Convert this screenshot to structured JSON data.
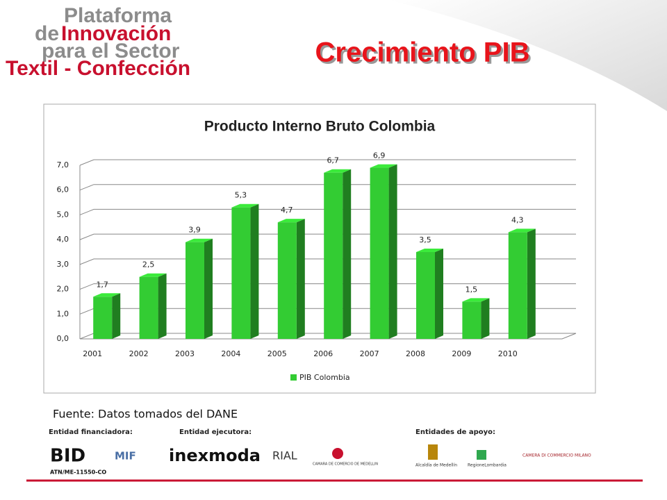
{
  "logo": {
    "line1": "Plataforma",
    "line2a": "de",
    "line2b": "Innovación",
    "line3": "para el Sector",
    "line4": "Textil - Confección"
  },
  "slide_title": "Crecimiento PIB",
  "source": "Fuente: Datos tomados del DANE",
  "footer": {
    "financiadora": "Entidad financiadora:",
    "ejecutora": "Entidad ejecutora:",
    "apoyo": "Entidades de apoyo:",
    "bid": "BID",
    "bid_code": "ATN/ME-11550-CO",
    "mif": "MIF",
    "inexmoda": "inexmoda",
    "rial": "RIAL",
    "camara": "CAMARA DE COMERCIO DE MEDELLIN",
    "alcaldia": "Alcaldía de Medellín",
    "lombardia": "RegioneLombardia",
    "milano": "CAMERA DI COMMERCIO MILANO"
  },
  "chart_data": {
    "type": "bar3d",
    "title": "Producto Interno Bruto Colombia",
    "categories": [
      "2001",
      "2002",
      "2003",
      "2004",
      "2005",
      "2006",
      "2007",
      "2008",
      "2009",
      "2010"
    ],
    "series": [
      {
        "name": "PIB Colombia",
        "color": "#33cc33",
        "values": [
          1.7,
          2.5,
          3.9,
          5.3,
          4.7,
          6.7,
          6.9,
          3.5,
          1.5,
          4.3
        ],
        "value_labels": [
          "1,7",
          "2,5",
          "3,9",
          "5,3",
          "4,7",
          "6,7",
          "6,9",
          "3,5",
          "1,5",
          "4,3"
        ]
      }
    ],
    "ylim": [
      0,
      7
    ],
    "yticks": [
      {
        "value": 0,
        "label": "0,0"
      },
      {
        "value": 1,
        "label": "1,0"
      },
      {
        "value": 2,
        "label": "2,0"
      },
      {
        "value": 3,
        "label": "3,0"
      },
      {
        "value": 4,
        "label": "4,0"
      },
      {
        "value": 5,
        "label": "5,0"
      },
      {
        "value": 6,
        "label": "6,0"
      },
      {
        "value": 7,
        "label": "7,0"
      }
    ],
    "grid": true,
    "legend": "bottom"
  }
}
